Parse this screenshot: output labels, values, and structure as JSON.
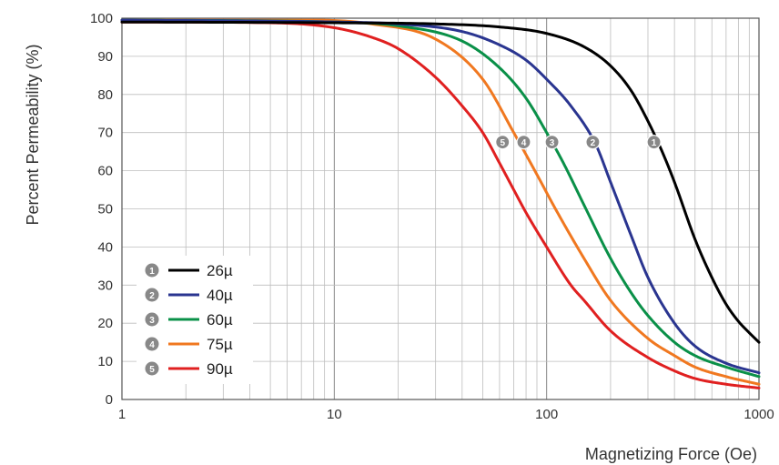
{
  "chart_data": {
    "type": "line",
    "title": "",
    "xlabel": "Magnetizing Force (Oe)",
    "ylabel": "Percent Permeability (%)",
    "x_scale": "log",
    "xlim": [
      1,
      1000
    ],
    "ylim": [
      0,
      100
    ],
    "x_ticks": [
      "1",
      "10",
      "100",
      "1000"
    ],
    "y_ticks": [
      "0",
      "10",
      "20",
      "30",
      "40",
      "50",
      "60",
      "70",
      "80",
      "90",
      "100"
    ],
    "grid": true,
    "legend_position": "bottom-left",
    "series": [
      {
        "name": "26µ",
        "marker": "1",
        "color": "#000000",
        "x": [
          1,
          10,
          30,
          60,
          100,
          150,
          200,
          250,
          300,
          350,
          400,
          500,
          600,
          700,
          800,
          900,
          1000
        ],
        "y": [
          99,
          98.8,
          98.5,
          97.7,
          96,
          92.5,
          87.5,
          81,
          73,
          65,
          57,
          42,
          32,
          25,
          20.5,
          17.5,
          15
        ]
      },
      {
        "name": "40µ",
        "marker": "2",
        "color": "#2a3590",
        "x": [
          1,
          10,
          20,
          40,
          60,
          80,
          100,
          130,
          170,
          200,
          250,
          300,
          400,
          500,
          700,
          1000
        ],
        "y": [
          99.5,
          99,
          98.5,
          96.5,
          93,
          89,
          84,
          77,
          67,
          57,
          43,
          32,
          20,
          14,
          9.5,
          7
        ]
      },
      {
        "name": "60µ",
        "marker": "3",
        "color": "#0a9048",
        "x": [
          1,
          10,
          20,
          40,
          60,
          80,
          100,
          120,
          150,
          200,
          250,
          300,
          400,
          500,
          700,
          1000
        ],
        "y": [
          99.5,
          99,
          98,
          94,
          87,
          79,
          70,
          62,
          51,
          37,
          28,
          22,
          15,
          11.5,
          8.5,
          6
        ]
      },
      {
        "name": "75µ",
        "marker": "4",
        "color": "#f07820",
        "x": [
          1,
          8,
          15,
          30,
          50,
          70,
          90,
          110,
          150,
          200,
          300,
          400,
          500,
          700,
          1000
        ],
        "y": [
          99.5,
          99.5,
          98.5,
          94.5,
          84,
          70,
          59,
          50,
          37,
          26,
          16,
          11.5,
          8.5,
          6,
          4
        ]
      },
      {
        "name": "90µ",
        "marker": "5",
        "color": "#e02020",
        "x": [
          1,
          5,
          10,
          15,
          20,
          30,
          40,
          50,
          60,
          70,
          80,
          100,
          130,
          150,
          200,
          300,
          400,
          500,
          700,
          1000
        ],
        "y": [
          99,
          98.8,
          97.5,
          95,
          92,
          84.5,
          77,
          70,
          62,
          55,
          49,
          40,
          30,
          26,
          18,
          11,
          7.5,
          5.5,
          4,
          3
        ]
      }
    ],
    "marker_points": [
      {
        "label": "1",
        "x": 320,
        "y": 67.5
      },
      {
        "label": "2",
        "x": 165,
        "y": 67.5
      },
      {
        "label": "3",
        "x": 106,
        "y": 67.5
      },
      {
        "label": "4",
        "x": 78,
        "y": 67.5
      },
      {
        "label": "5",
        "x": 62,
        "y": 67.5
      }
    ]
  },
  "colors": {
    "grid": "#bdbdbd",
    "frame": "#555555",
    "marker_fill": "#888888",
    "legend_bg": "#ffffff"
  }
}
